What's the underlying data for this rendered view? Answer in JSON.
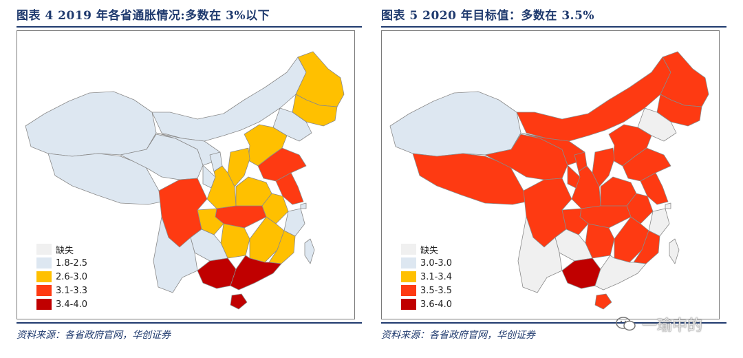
{
  "charts": {
    "left": {
      "title": "图表 4   2019 年各省通胀情况:多数在 3%以下",
      "source": "资料来源：各省政府官网，华创证券"
    },
    "right": {
      "title": "图表 5   2020 年目标值：多数在 3.5%",
      "source": "资料来源：各省政府官网，华创证券"
    }
  },
  "watermark": "一瑜中的",
  "colors": {
    "missing": "#f0f0f0",
    "c1": "#dde7f1",
    "c2": "#ffc000",
    "c3": "#fe3a12",
    "c4": "#c00000"
  },
  "chart_data": [
    {
      "type": "map",
      "title": "图表 4   2019 年各省通胀情况:多数在 3%以下",
      "legend": [
        {
          "label": "缺失",
          "color": "#f0f0f0"
        },
        {
          "label": "1.8-2.5",
          "color": "#dde7f1"
        },
        {
          "label": "2.6-3.0",
          "color": "#ffc000"
        },
        {
          "label": "3.1-3.3",
          "color": "#fe3a12"
        },
        {
          "label": "3.4-4.0",
          "color": "#c00000"
        }
      ],
      "regions": {
        "xinjiang": "1.8-2.5",
        "tibet": "1.8-2.5",
        "qinghai": "1.8-2.5",
        "inner_mongolia": "1.8-2.5",
        "gansu": "1.8-2.5",
        "ningxia": "1.8-2.5",
        "yunnan": "1.8-2.5",
        "guizhou": "1.8-2.5",
        "beijing": "1.8-2.5",
        "tianjin": "1.8-2.5",
        "liaoning": "1.8-2.5",
        "shanghai": "1.8-2.5",
        "zhejiang": "1.8-2.5",
        "taiwan": "1.8-2.5",
        "heilongjiang": "2.6-3.0",
        "jilin": "2.6-3.0",
        "hebei": "2.6-3.0",
        "shanxi": "2.6-3.0",
        "shaanxi": "2.6-3.0",
        "henan": "2.6-3.0",
        "hunan": "2.6-3.0",
        "jiangxi": "2.6-3.0",
        "anhui": "2.6-3.0",
        "fujian": "2.6-3.0",
        "chongqing": "2.6-3.0",
        "sichuan": "3.1-3.3",
        "hubei": "3.1-3.3",
        "shandong": "3.1-3.3",
        "jiangsu": "3.1-3.3",
        "guangdong": "3.4-4.0",
        "guangxi": "3.4-4.0",
        "hainan": "3.4-4.0"
      }
    },
    {
      "type": "map",
      "title": "图表 5   2020 年目标值：多数在 3.5%",
      "legend": [
        {
          "label": "缺失",
          "color": "#f0f0f0"
        },
        {
          "label": "3.0-3.0",
          "color": "#dde7f1"
        },
        {
          "label": "3.1-3.4",
          "color": "#ffc000"
        },
        {
          "label": "3.5-3.5",
          "color": "#fe3a12"
        },
        {
          "label": "3.6-4.0",
          "color": "#c00000"
        }
      ],
      "regions": {
        "xinjiang": "3.0-3.0",
        "beijing": "3.0-3.0",
        "liaoning": "缺失",
        "yunnan": "缺失",
        "guizhou": "缺失",
        "guangdong": "缺失",
        "shanghai": "缺失",
        "zhejiang": "缺失",
        "taiwan": "缺失",
        "tibet": "3.5-3.5",
        "qinghai": "3.5-3.5",
        "inner_mongolia": "3.5-3.5",
        "gansu": "3.5-3.5",
        "ningxia": "3.5-3.5",
        "heilongjiang": "3.5-3.5",
        "jilin": "3.5-3.5",
        "hebei": "3.5-3.5",
        "tianjin": "3.5-3.5",
        "shanxi": "3.5-3.5",
        "shaanxi": "3.5-3.5",
        "henan": "3.5-3.5",
        "shandong": "3.5-3.5",
        "jiangsu": "3.5-3.5",
        "anhui": "3.5-3.5",
        "hubei": "3.5-3.5",
        "hunan": "3.5-3.5",
        "jiangxi": "3.5-3.5",
        "fujian": "3.5-3.5",
        "sichuan": "3.5-3.5",
        "chongqing": "3.5-3.5",
        "hainan": "3.5-3.5",
        "guangxi": "3.6-4.0"
      }
    }
  ]
}
